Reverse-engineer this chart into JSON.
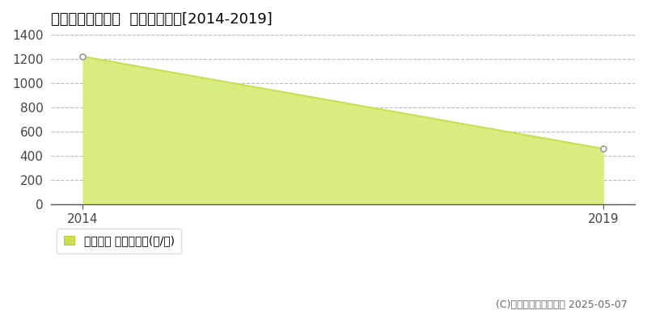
{
  "title": "多気郡多気町車川  林地価格推移[2014-2019]",
  "years": [
    2014,
    2019
  ],
  "values": [
    1220,
    460
  ],
  "line_color": "#c8e050",
  "fill_color": "#d8ec80",
  "fill_alpha": 1.0,
  "marker_edge_color": "#999999",
  "ylim": [
    0,
    1400
  ],
  "yticks": [
    0,
    200,
    400,
    600,
    800,
    1000,
    1200,
    1400
  ],
  "xlim_left": 2013.7,
  "xlim_right": 2019.3,
  "grid_color": "#bbbbbb",
  "bg_color": "#ffffff",
  "legend_label": "林地価格 平均坪単価(円/坪)",
  "copyright": "(C)土地価格ドットコム 2025-05-07",
  "title_fontsize": 13,
  "tick_fontsize": 11,
  "legend_fontsize": 10,
  "copyright_fontsize": 9
}
